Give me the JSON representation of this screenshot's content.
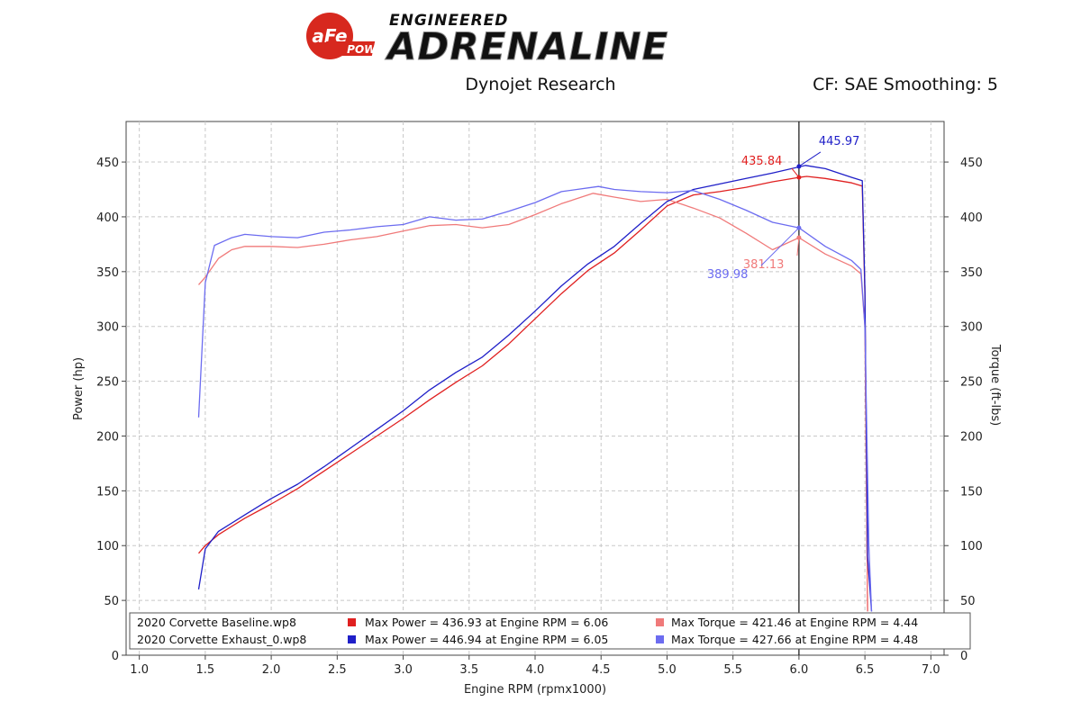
{
  "header": {
    "brand_badge": "aFe",
    "brand_badge_sub": "POWER",
    "brand_top": "ENGINEERED",
    "brand_main": "ADRENALINE",
    "center_label": "Dynojet Research",
    "right_label": "CF: SAE Smoothing: 5"
  },
  "colors": {
    "baseline_power": "#e02020",
    "baseline_torque": "#f07a7a",
    "exhaust_power": "#1f1fc8",
    "exhaust_torque": "#6c6cf0",
    "grid": "#c8c8c8",
    "badge": "#d7281e"
  },
  "chart_data": {
    "type": "line",
    "xlabel": "Engine RPM (rpmx1000)",
    "ylabel": "Power (hp)",
    "y2label": "Torque (ft-lbs)",
    "xlim": [
      0.9,
      7.1
    ],
    "ylim": [
      0,
      487
    ],
    "xticks": [
      "1.0",
      "1.5",
      "2.0",
      "2.5",
      "3.0",
      "3.5",
      "4.0",
      "4.5",
      "5.0",
      "5.5",
      "6.0",
      "6.5",
      "7.0"
    ],
    "xtick_values": [
      1.0,
      1.5,
      2.0,
      2.5,
      3.0,
      3.5,
      4.0,
      4.5,
      5.0,
      5.5,
      6.0,
      6.5,
      7.0
    ],
    "yticks": [
      "0",
      "50",
      "100",
      "150",
      "200",
      "250",
      "300",
      "350",
      "400",
      "450"
    ],
    "ytick_values": [
      0,
      50,
      100,
      150,
      200,
      250,
      300,
      350,
      400,
      450
    ],
    "y2ticks": [
      "0",
      "50",
      "100",
      "150",
      "200",
      "250",
      "300",
      "350",
      "400",
      "450"
    ],
    "grid": true,
    "cursor_x": 6.0,
    "series": [
      {
        "id": "baseline_power",
        "axis": "left",
        "color_key": "baseline_power",
        "x": [
          1.45,
          1.5,
          1.6,
          1.8,
          2.0,
          2.2,
          2.4,
          2.6,
          2.8,
          3.0,
          3.2,
          3.4,
          3.6,
          3.8,
          4.0,
          4.2,
          4.4,
          4.6,
          4.8,
          5.0,
          5.2,
          5.4,
          5.6,
          5.8,
          6.0,
          6.06,
          6.2,
          6.4,
          6.48,
          6.5,
          6.52
        ],
        "y": [
          93,
          100,
          110,
          125,
          138,
          152,
          168,
          184,
          200,
          216,
          233,
          249,
          264,
          284,
          307,
          330,
          351,
          367,
          388,
          410,
          420,
          423,
          427,
          432,
          436,
          436.9,
          435,
          431,
          428,
          330,
          40
        ]
      },
      {
        "id": "baseline_torque",
        "axis": "right",
        "color_key": "baseline_torque",
        "x": [
          1.45,
          1.5,
          1.6,
          1.7,
          1.8,
          2.0,
          2.2,
          2.4,
          2.6,
          2.8,
          3.0,
          3.2,
          3.4,
          3.6,
          3.8,
          4.0,
          4.2,
          4.44,
          4.6,
          4.8,
          5.0,
          5.2,
          5.4,
          5.6,
          5.8,
          6.0,
          6.2,
          6.4,
          6.47,
          6.5,
          6.52
        ],
        "y": [
          338,
          345,
          362,
          370,
          373,
          373,
          372,
          375,
          379,
          382,
          387,
          392,
          393,
          390,
          393,
          402,
          412,
          421.5,
          418,
          414,
          416,
          408,
          399,
          385,
          370,
          381,
          366,
          355,
          348,
          300,
          40
        ]
      },
      {
        "id": "exhaust_power",
        "axis": "left",
        "color_key": "exhaust_power",
        "x": [
          1.45,
          1.5,
          1.6,
          1.8,
          2.0,
          2.2,
          2.4,
          2.6,
          2.8,
          3.0,
          3.2,
          3.4,
          3.6,
          3.8,
          4.0,
          4.2,
          4.4,
          4.6,
          4.8,
          5.0,
          5.2,
          5.4,
          5.6,
          5.8,
          6.05,
          6.2,
          6.4,
          6.48,
          6.5,
          6.52,
          6.55
        ],
        "y": [
          60,
          97,
          113,
          128,
          143,
          156,
          172,
          189,
          206,
          223,
          242,
          258,
          272,
          292,
          314,
          337,
          357,
          373,
          394,
          414,
          425,
          430,
          435,
          440,
          446.9,
          444,
          436,
          433,
          335,
          90,
          40
        ]
      },
      {
        "id": "exhaust_torque",
        "axis": "right",
        "color_key": "exhaust_torque",
        "x": [
          1.45,
          1.5,
          1.57,
          1.7,
          1.8,
          2.0,
          2.2,
          2.4,
          2.6,
          2.8,
          3.0,
          3.2,
          3.4,
          3.6,
          3.8,
          4.0,
          4.2,
          4.48,
          4.6,
          4.8,
          5.0,
          5.2,
          5.4,
          5.6,
          5.8,
          6.0,
          6.2,
          6.4,
          6.47,
          6.5,
          6.53,
          6.55
        ],
        "y": [
          217,
          340,
          374,
          381,
          384,
          382,
          381,
          386,
          388,
          391,
          393,
          400,
          397,
          398,
          405,
          413,
          423,
          427.7,
          425,
          423,
          422,
          424,
          416,
          406,
          395,
          390,
          373,
          360,
          352,
          300,
          100,
          40
        ]
      }
    ],
    "annotations": [
      {
        "label": "435.84",
        "color_key": "baseline_power",
        "x": 6.0,
        "y": 436
      },
      {
        "label": "445.97",
        "color_key": "exhaust_power",
        "x": 6.0,
        "y": 446
      },
      {
        "label": "381.13",
        "color_key": "baseline_torque",
        "x": 6.0,
        "y": 381
      },
      {
        "label": "389.98",
        "color_key": "exhaust_torque",
        "x": 6.0,
        "y": 390
      }
    ],
    "legend": {
      "placement": "bottom",
      "rows": [
        {
          "run": "2020 Corvette Baseline.wp8",
          "power_color_key": "baseline_power",
          "power": "Max Power = 436.93 at Engine RPM = 6.06",
          "torque_color_key": "baseline_torque",
          "torque": "Max Torque = 421.46 at Engine RPM = 4.44"
        },
        {
          "run": "2020 Corvette Exhaust_0.wp8",
          "power_color_key": "exhaust_power",
          "power": "Max Power = 446.94 at Engine RPM = 6.05",
          "torque_color_key": "exhaust_torque",
          "torque": "Max Torque = 427.66 at Engine RPM = 4.48"
        }
      ]
    }
  }
}
